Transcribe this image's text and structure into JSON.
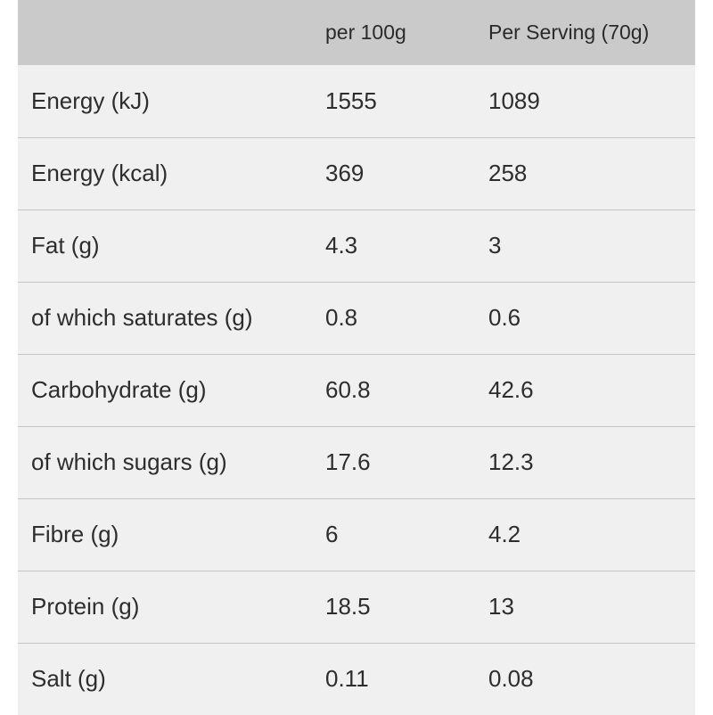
{
  "table": {
    "headers": [
      "",
      "per 100g",
      "Per Serving (70g)"
    ],
    "rows": [
      [
        "Energy (kJ)",
        "1555",
        "1089"
      ],
      [
        "Energy (kcal)",
        "369",
        "258"
      ],
      [
        "Fat (g)",
        "4.3",
        "3"
      ],
      [
        "of which saturates (g)",
        "0.8",
        "0.6"
      ],
      [
        "Carbohydrate (g)",
        "60.8",
        "42.6"
      ],
      [
        "of which sugars (g)",
        "17.6",
        "12.3"
      ],
      [
        "Fibre (g)",
        "6",
        "4.2"
      ],
      [
        "Protein (g)",
        "18.5",
        "13"
      ],
      [
        "Salt (g)",
        "0.11",
        "0.08"
      ]
    ]
  },
  "colors": {
    "header_background": "#cacaca",
    "row_background": "#f0f0f0",
    "row_divider": "#c4c4c4",
    "text": "#2d2d2d"
  }
}
